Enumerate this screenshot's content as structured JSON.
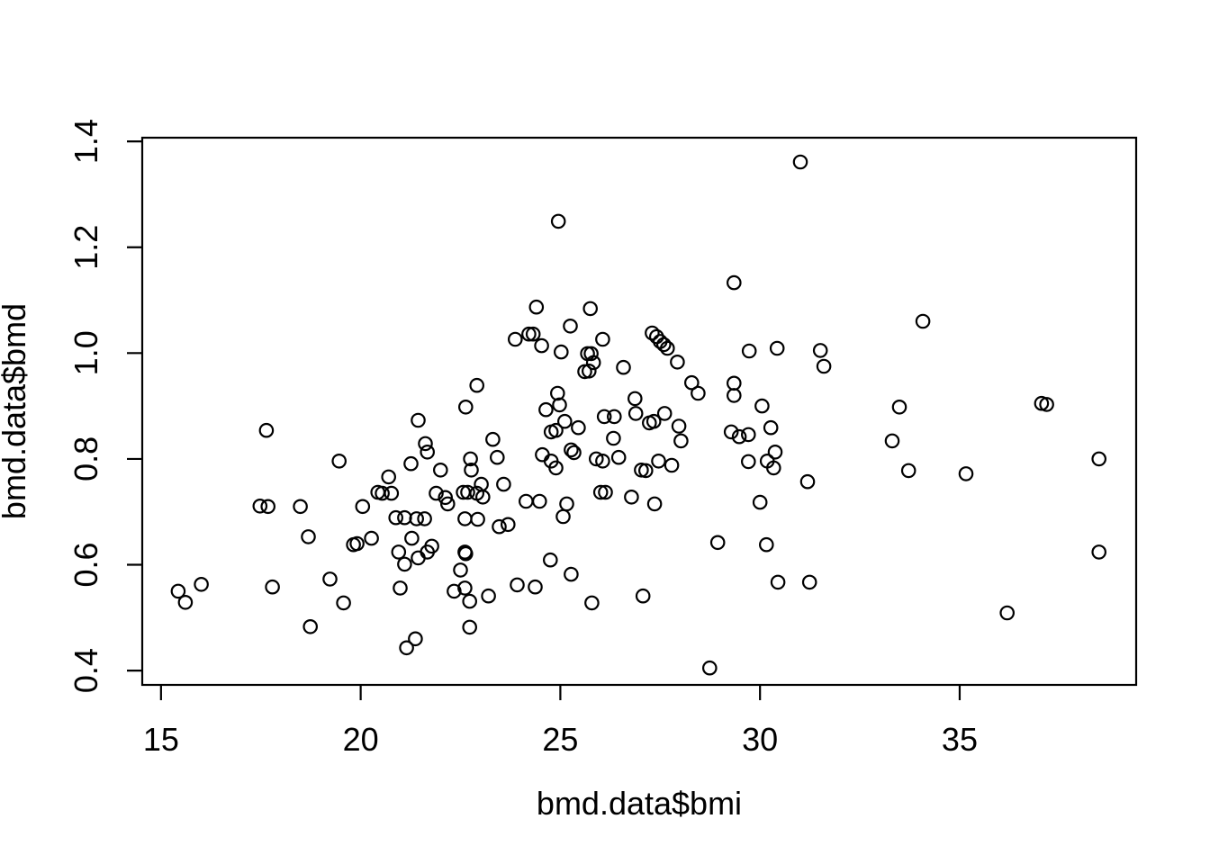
{
  "chart_data": {
    "type": "scatter",
    "title": "",
    "xlabel": "bmd.data$bmi",
    "ylabel": "bmd.data$bmd",
    "x_ticks": [
      15,
      20,
      25,
      30,
      35
    ],
    "x_tick_labels": [
      "15",
      "20",
      "25",
      "30",
      "35"
    ],
    "y_ticks": [
      0.4,
      0.6,
      0.8,
      1.0,
      1.2,
      1.4
    ],
    "y_tick_labels": [
      "0.4",
      "0.6",
      "0.8",
      "1.0",
      "1.2",
      "1.4"
    ],
    "xlim": [
      14.53,
      39.42
    ],
    "ylim": [
      0.373,
      1.407
    ],
    "grid": false,
    "legend": null,
    "marker": "open-circle",
    "marker_color": "#000000",
    "background_color": "#ffffff",
    "box": true,
    "points": [
      [
        24.95,
        1.249
      ],
      [
        24.4,
        1.087
      ],
      [
        25.75,
        1.084
      ],
      [
        25.25,
        1.051
      ],
      [
        23.87,
        1.026
      ],
      [
        24.21,
        1.036
      ],
      [
        24.32,
        1.036
      ],
      [
        24.53,
        1.014
      ],
      [
        25.02,
        1.002
      ],
      [
        26.06,
        1.026
      ],
      [
        25.68,
        0.999
      ],
      [
        25.77,
        0.999
      ],
      [
        25.83,
        0.982
      ],
      [
        25.61,
        0.965
      ],
      [
        25.72,
        0.966
      ],
      [
        26.58,
        0.973
      ],
      [
        22.91,
        0.939
      ],
      [
        22.63,
        0.898
      ],
      [
        24.93,
        0.924
      ],
      [
        24.98,
        0.902
      ],
      [
        25.11,
        0.871
      ],
      [
        24.64,
        0.893
      ],
      [
        26.87,
        0.914
      ],
      [
        26.89,
        0.886
      ],
      [
        31.01,
        1.361
      ],
      [
        29.35,
        1.133
      ],
      [
        27.3,
        1.038
      ],
      [
        27.41,
        1.031
      ],
      [
        27.5,
        1.022
      ],
      [
        27.59,
        1.016
      ],
      [
        27.68,
        1.009
      ],
      [
        27.93,
        0.983
      ],
      [
        28.29,
        0.944
      ],
      [
        28.45,
        0.924
      ],
      [
        29.35,
        0.943
      ],
      [
        29.35,
        0.92
      ],
      [
        29.73,
        1.004
      ],
      [
        30.43,
        1.009
      ],
      [
        31.51,
        1.005
      ],
      [
        31.6,
        0.975
      ],
      [
        30.05,
        0.9
      ],
      [
        34.08,
        1.06
      ],
      [
        33.49,
        0.898
      ],
      [
        37.05,
        0.905
      ],
      [
        37.18,
        0.903
      ],
      [
        17.64,
        0.854
      ],
      [
        19.46,
        0.796
      ],
      [
        20.7,
        0.766
      ],
      [
        20.43,
        0.737
      ],
      [
        20.54,
        0.735
      ],
      [
        20.77,
        0.735
      ],
      [
        17.48,
        0.711
      ],
      [
        17.68,
        0.71
      ],
      [
        18.49,
        0.71
      ],
      [
        20.05,
        0.71
      ],
      [
        18.69,
        0.653
      ],
      [
        19.82,
        0.638
      ],
      [
        19.91,
        0.64
      ],
      [
        20.27,
        0.65
      ],
      [
        16.01,
        0.563
      ],
      [
        15.43,
        0.55
      ],
      [
        15.61,
        0.529
      ],
      [
        17.79,
        0.558
      ],
      [
        19.23,
        0.573
      ],
      [
        19.57,
        0.528
      ],
      [
        18.74,
        0.483
      ],
      [
        21.44,
        0.873
      ],
      [
        25.45,
        0.859
      ],
      [
        24.77,
        0.851
      ],
      [
        24.89,
        0.854
      ],
      [
        26.1,
        0.88
      ],
      [
        26.35,
        0.88
      ],
      [
        27.23,
        0.868
      ],
      [
        27.34,
        0.871
      ],
      [
        21.62,
        0.829
      ],
      [
        21.67,
        0.813
      ],
      [
        22.0,
        0.779
      ],
      [
        21.26,
        0.791
      ],
      [
        23.31,
        0.837
      ],
      [
        23.42,
        0.803
      ],
      [
        22.75,
        0.8
      ],
      [
        22.77,
        0.779
      ],
      [
        24.55,
        0.808
      ],
      [
        24.77,
        0.796
      ],
      [
        24.89,
        0.783
      ],
      [
        25.27,
        0.817
      ],
      [
        25.34,
        0.812
      ],
      [
        25.9,
        0.8
      ],
      [
        26.06,
        0.796
      ],
      [
        26.46,
        0.803
      ],
      [
        27.03,
        0.779
      ],
      [
        27.14,
        0.778
      ],
      [
        27.46,
        0.796
      ],
      [
        21.89,
        0.735
      ],
      [
        22.12,
        0.727
      ],
      [
        22.18,
        0.715
      ],
      [
        22.57,
        0.737
      ],
      [
        22.68,
        0.737
      ],
      [
        22.91,
        0.735
      ],
      [
        23.02,
        0.752
      ],
      [
        23.06,
        0.728
      ],
      [
        23.58,
        0.752
      ],
      [
        24.14,
        0.72
      ],
      [
        24.48,
        0.72
      ],
      [
        25.16,
        0.715
      ],
      [
        25.07,
        0.691
      ],
      [
        26.01,
        0.737
      ],
      [
        26.13,
        0.737
      ],
      [
        26.78,
        0.728
      ],
      [
        27.36,
        0.715
      ],
      [
        26.33,
        0.839
      ],
      [
        20.88,
        0.689
      ],
      [
        21.1,
        0.689
      ],
      [
        21.4,
        0.687
      ],
      [
        21.6,
        0.687
      ],
      [
        22.61,
        0.687
      ],
      [
        22.93,
        0.686
      ],
      [
        23.47,
        0.672
      ],
      [
        23.69,
        0.676
      ],
      [
        21.28,
        0.65
      ],
      [
        20.95,
        0.624
      ],
      [
        21.1,
        0.601
      ],
      [
        21.44,
        0.613
      ],
      [
        21.67,
        0.624
      ],
      [
        21.78,
        0.635
      ],
      [
        20.99,
        0.556
      ],
      [
        22.61,
        0.624
      ],
      [
        22.63,
        0.621
      ],
      [
        22.5,
        0.59
      ],
      [
        22.34,
        0.55
      ],
      [
        22.61,
        0.556
      ],
      [
        22.73,
        0.531
      ],
      [
        23.2,
        0.541
      ],
      [
        23.92,
        0.562
      ],
      [
        24.37,
        0.558
      ],
      [
        24.75,
        0.609
      ],
      [
        25.27,
        0.582
      ],
      [
        25.79,
        0.528
      ],
      [
        27.07,
        0.541
      ],
      [
        22.73,
        0.482
      ],
      [
        21.37,
        0.46
      ],
      [
        21.15,
        0.443
      ],
      [
        27.61,
        0.886
      ],
      [
        27.97,
        0.862
      ],
      [
        28.02,
        0.834
      ],
      [
        27.79,
        0.788
      ],
      [
        29.28,
        0.851
      ],
      [
        29.48,
        0.842
      ],
      [
        29.71,
        0.846
      ],
      [
        30.27,
        0.859
      ],
      [
        30.38,
        0.813
      ],
      [
        30.18,
        0.796
      ],
      [
        30.34,
        0.783
      ],
      [
        29.71,
        0.795
      ],
      [
        31.19,
        0.757
      ],
      [
        30.0,
        0.718
      ],
      [
        28.94,
        0.642
      ],
      [
        30.16,
        0.638
      ],
      [
        30.45,
        0.567
      ],
      [
        31.24,
        0.567
      ],
      [
        28.74,
        0.405
      ],
      [
        33.31,
        0.834
      ],
      [
        33.72,
        0.778
      ],
      [
        35.16,
        0.772
      ],
      [
        38.49,
        0.8
      ],
      [
        38.49,
        0.624
      ],
      [
        36.19,
        0.509
      ]
    ]
  }
}
